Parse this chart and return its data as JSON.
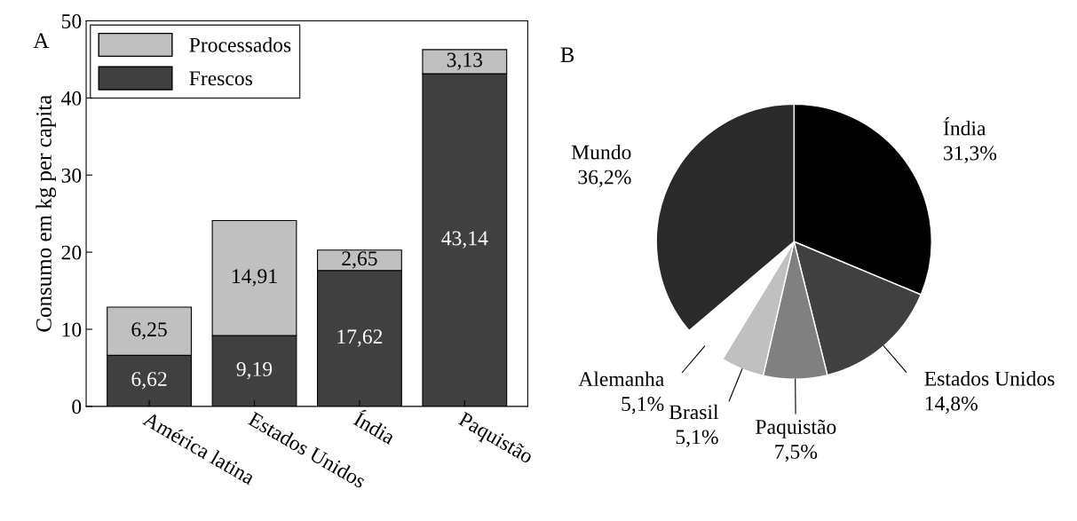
{
  "chart_data": [
    {
      "type": "bar",
      "stacked": true,
      "ylabel": "Consumo em kg per capita",
      "annotations": [
        "A"
      ],
      "categories": [
        "América latina",
        "Estados Unidos",
        "Índia",
        "Paquistão"
      ],
      "series": [
        {
          "name": "Frescos",
          "color": "#404040",
          "values": [
            6.62,
            9.19,
            17.62,
            43.14
          ],
          "value_labels": [
            "6,62",
            "9,19",
            "17,62",
            "43,14"
          ]
        },
        {
          "name": "Processados",
          "color": "#c0c0c0",
          "values": [
            6.25,
            14.91,
            2.65,
            3.13
          ],
          "value_labels": [
            "6,25",
            "14,91",
            "2,65",
            "3,13"
          ]
        }
      ],
      "ylim": [
        0,
        50
      ],
      "yticks": [
        0,
        10,
        20,
        30,
        40,
        50
      ],
      "legend": "top left",
      "grid": false
    },
    {
      "type": "pie",
      "annotations": [
        "B"
      ],
      "categories": [
        "Índia",
        "Estados Unidos",
        "Paquistão",
        "Brasil",
        "Alemanha",
        "Mundo"
      ],
      "values": [
        31.3,
        14.8,
        7.5,
        5.1,
        5.1,
        36.2
      ],
      "value_labels": [
        "31,3%",
        "14,8%",
        "7,5%",
        "5,1%",
        "5,1%",
        "36,2%"
      ],
      "colors": [
        "#000000",
        "#404040",
        "#808080",
        "#c0c0c0",
        "#ffffff",
        "#2a2a2a"
      ]
    }
  ]
}
